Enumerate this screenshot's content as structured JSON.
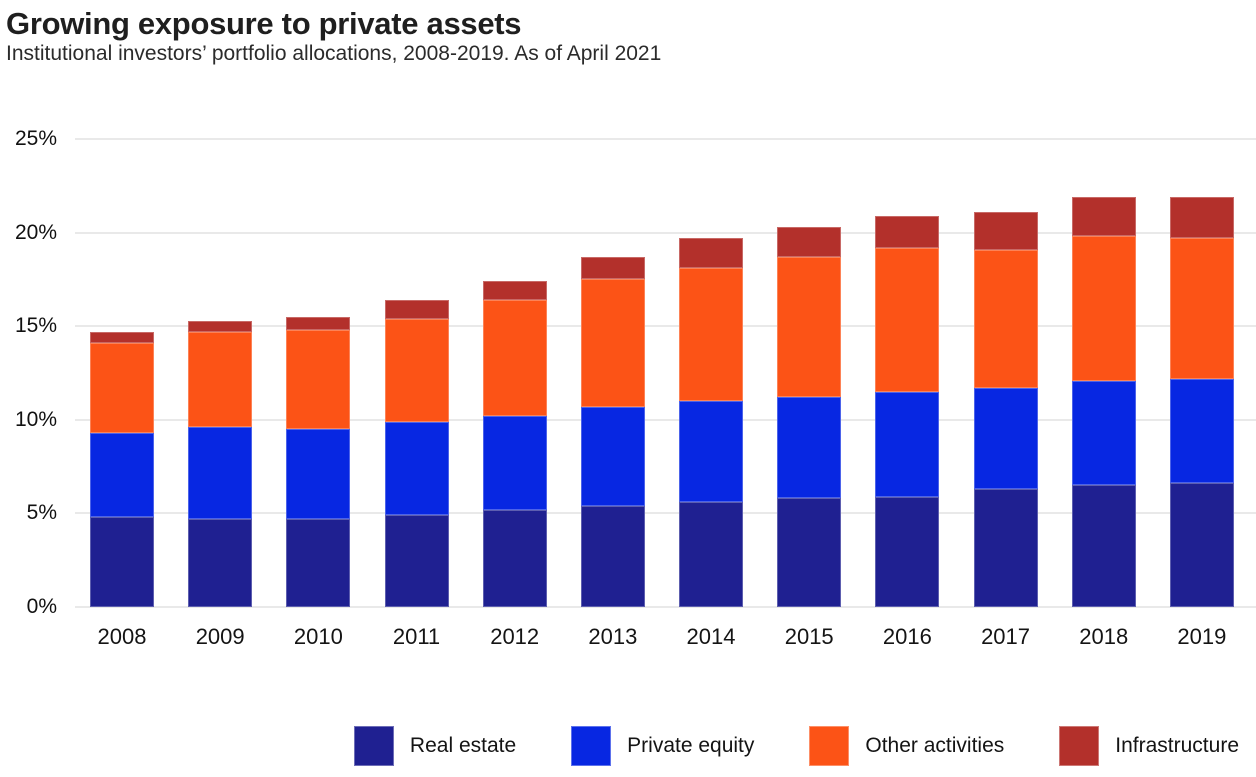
{
  "chart_data": {
    "type": "bar",
    "stacked": true,
    "title": "Growing exposure to private assets",
    "subtitle": "Institutional investors’ portfolio allocations, 2008-2019. As of April 2021",
    "categories": [
      "2008",
      "2009",
      "2010",
      "2011",
      "2012",
      "2013",
      "2014",
      "2015",
      "2016",
      "2017",
      "2018",
      "2019"
    ],
    "series": [
      {
        "name": "Real estate",
        "color": "#1f2091",
        "values": [
          4.8,
          4.7,
          4.7,
          4.9,
          5.2,
          5.4,
          5.6,
          5.8,
          5.9,
          6.3,
          6.5,
          6.6
        ]
      },
      {
        "name": "Private equity",
        "color": "#0727e2",
        "values": [
          4.5,
          4.9,
          4.8,
          5.0,
          5.0,
          5.3,
          5.4,
          5.4,
          5.6,
          5.4,
          5.6,
          5.6
        ]
      },
      {
        "name": "Other activities",
        "color": "#fc5316",
        "values": [
          4.8,
          5.1,
          5.3,
          5.5,
          6.2,
          6.8,
          7.1,
          7.5,
          7.7,
          7.4,
          7.7,
          7.5
        ]
      },
      {
        "name": "Infrastructure",
        "color": "#b3302b",
        "values": [
          0.6,
          0.6,
          0.7,
          1.0,
          1.0,
          1.2,
          1.6,
          1.6,
          1.7,
          2.0,
          2.1,
          2.2
        ]
      }
    ],
    "xlabel": "",
    "ylabel": "",
    "unit": "%",
    "ylim": [
      0,
      25
    ],
    "y_tick_values": [
      25,
      20,
      15,
      10,
      5,
      0
    ],
    "y_ticks": [
      "25%",
      "20%",
      "15%",
      "10%",
      "5%",
      "0%"
    ],
    "grid": true,
    "legend_position": "bottom"
  },
  "colors": {
    "gridline": "#e9e9e9",
    "title_text": "#1f1f1f",
    "subtitle_text": "#2b2b2b",
    "axis_text": "#111111",
    "background": "#ffffff"
  }
}
